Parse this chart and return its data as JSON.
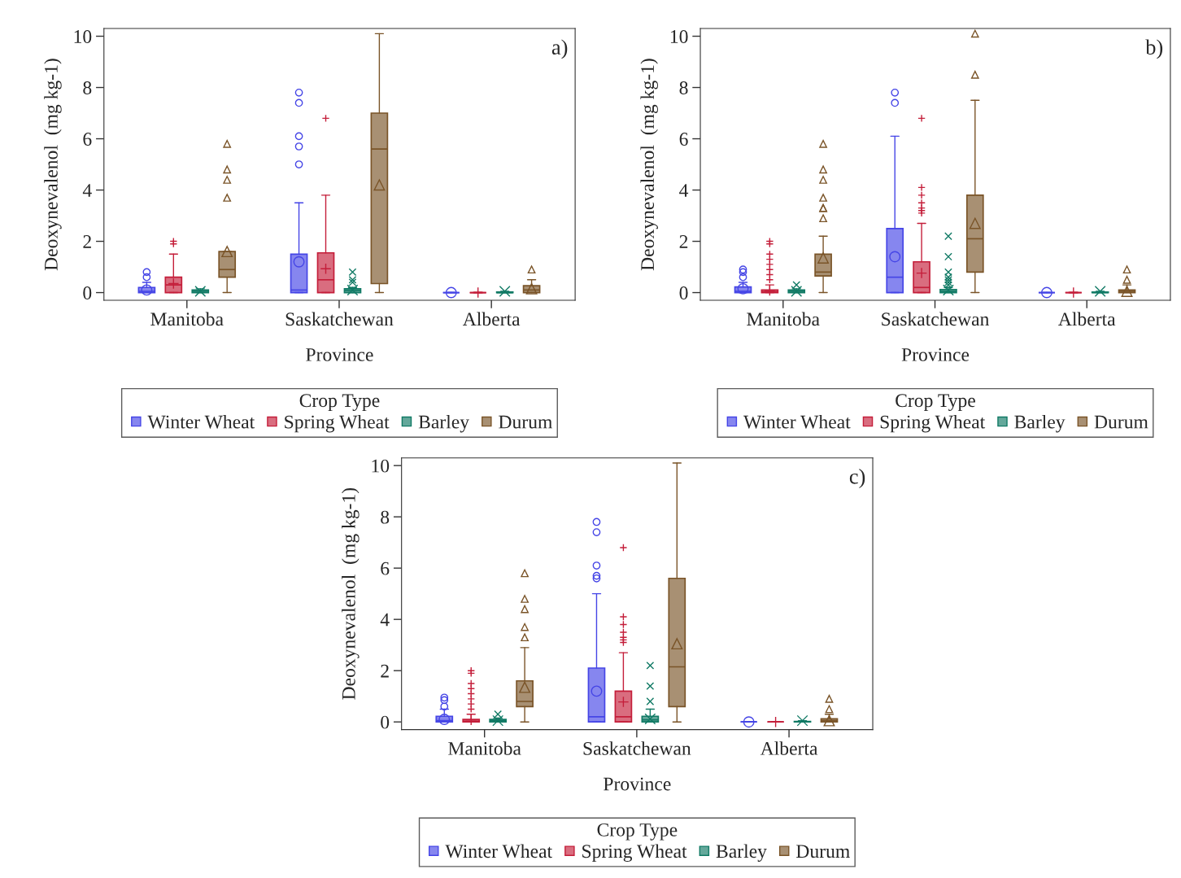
{
  "chart_data": [
    {
      "type": "box",
      "annotations": [
        "a)"
      ],
      "xlabel": "Province",
      "ylabel": "Deoxynevalenol  (mg kg-1)",
      "legend_title": "Crop Type",
      "legend": "bottom",
      "ylim": [
        -0.3,
        10.3
      ],
      "yticks": [
        0,
        2,
        4,
        6,
        8,
        10
      ],
      "categories": [
        "Manitoba",
        "Saskatchewan",
        "Alberta"
      ],
      "series": [
        {
          "name": "Winter Wheat",
          "color": "#4545e6",
          "marker": "circle",
          "boxes": [
            {
              "low": 0,
              "q1": 0,
              "median": 0.05,
              "q3": 0.2,
              "high": 0.4,
              "mean": 0.1,
              "outliers": [
                0.6,
                0.8
              ]
            },
            {
              "low": 0,
              "q1": 0,
              "median": 0.1,
              "q3": 1.5,
              "high": 3.5,
              "mean": 1.2,
              "outliers": [
                5.0,
                5.7,
                6.1,
                7.4,
                7.8
              ]
            },
            {
              "low": 0,
              "q1": 0,
              "median": 0,
              "q3": 0,
              "high": 0,
              "mean": 0
            }
          ]
        },
        {
          "name": "Spring Wheat",
          "color": "#c41e3a",
          "marker": "plus",
          "boxes": [
            {
              "low": 0,
              "q1": 0,
              "median": 0.3,
              "q3": 0.6,
              "high": 1.5,
              "mean": 0.35,
              "outliers": [
                1.9,
                2.0
              ]
            },
            {
              "low": 0,
              "q1": 0,
              "median": 0.5,
              "q3": 1.55,
              "high": 3.8,
              "mean": 0.93,
              "outliers": [
                6.8
              ]
            },
            {
              "low": 0,
              "q1": 0,
              "median": 0,
              "q3": 0,
              "high": 0,
              "mean": 0
            }
          ]
        },
        {
          "name": "Barley",
          "color": "#117a65",
          "marker": "x",
          "boxes": [
            {
              "low": 0,
              "q1": 0,
              "median": 0.05,
              "q3": 0.1,
              "high": 0.15,
              "mean": 0.05
            },
            {
              "low": 0,
              "q1": 0,
              "median": 0.08,
              "q3": 0.15,
              "high": 0.2,
              "mean": 0.1,
              "outliers": [
                0.4,
                0.5,
                0.8
              ]
            },
            {
              "low": 0,
              "q1": 0,
              "median": 0,
              "q3": 0.02,
              "high": 0.05,
              "mean": 0.05
            }
          ]
        },
        {
          "name": "Durum",
          "color": "#7a5428",
          "marker": "triangle",
          "boxes": [
            {
              "low": 0,
              "q1": 0.6,
              "median": 0.9,
              "q3": 1.6,
              "high": 1.6,
              "mean": 1.6,
              "outliers": [
                3.7,
                4.4,
                4.8,
                5.8
              ]
            },
            {
              "low": 0,
              "q1": 0.35,
              "median": 5.6,
              "q3": 7.0,
              "high": 10.1,
              "mean": 4.2
            },
            {
              "low": 0,
              "q1": 0,
              "median": 0.1,
              "q3": 0.27,
              "high": 0.5,
              "mean": 0.15,
              "outliers": [
                0.9
              ]
            }
          ]
        }
      ]
    },
    {
      "type": "box",
      "annotations": [
        "b)"
      ],
      "xlabel": "Province",
      "ylabel": "Deoxynevalenol  (mg kg-1)",
      "legend_title": "Crop Type",
      "legend": "bottom",
      "ylim": [
        -0.3,
        10.3
      ],
      "yticks": [
        0,
        2,
        4,
        6,
        8,
        10
      ],
      "categories": [
        "Manitoba",
        "Saskatchewan",
        "Alberta"
      ],
      "series": [
        {
          "name": "Winter Wheat",
          "color": "#4545e6",
          "marker": "circle",
          "boxes": [
            {
              "low": 0,
              "q1": 0,
              "median": 0.05,
              "q3": 0.22,
              "high": 0.4,
              "mean": 0.15,
              "outliers": [
                0.6,
                0.8,
                0.9
              ]
            },
            {
              "low": 0,
              "q1": 0,
              "median": 0.6,
              "q3": 2.5,
              "high": 6.1,
              "mean": 1.4,
              "outliers": [
                7.4,
                7.8
              ]
            },
            {
              "low": 0,
              "q1": 0,
              "median": 0,
              "q3": 0,
              "high": 0,
              "mean": 0
            }
          ]
        },
        {
          "name": "Spring Wheat",
          "color": "#c41e3a",
          "marker": "plus",
          "boxes": [
            {
              "low": 0,
              "q1": 0,
              "median": 0.03,
              "q3": 0.1,
              "high": 0.3,
              "mean": 0.08,
              "outliers": [
                0.5,
                0.7,
                0.9,
                1.1,
                1.3,
                1.5,
                1.9,
                2.0
              ]
            },
            {
              "low": 0,
              "q1": 0,
              "median": 0.2,
              "q3": 1.2,
              "high": 2.7,
              "mean": 0.76,
              "outliers": [
                3.1,
                3.2,
                3.3,
                3.5,
                3.8,
                4.1,
                6.8
              ]
            },
            {
              "low": 0,
              "q1": 0,
              "median": 0,
              "q3": 0,
              "high": 0,
              "mean": 0
            }
          ]
        },
        {
          "name": "Barley",
          "color": "#117a65",
          "marker": "x",
          "boxes": [
            {
              "low": 0,
              "q1": 0,
              "median": 0.05,
              "q3": 0.1,
              "high": 0.15,
              "mean": 0.05,
              "outliers": [
                0.3
              ]
            },
            {
              "low": 0,
              "q1": 0,
              "median": 0.05,
              "q3": 0.12,
              "high": 0.2,
              "mean": 0.1,
              "outliers": [
                0.3,
                0.4,
                0.5,
                0.6,
                0.8,
                1.4,
                2.2
              ]
            },
            {
              "low": 0,
              "q1": 0,
              "median": 0,
              "q3": 0.02,
              "high": 0.05,
              "mean": 0.05
            }
          ]
        },
        {
          "name": "Durum",
          "color": "#7a5428",
          "marker": "triangle",
          "boxes": [
            {
              "low": 0,
              "q1": 0.65,
              "median": 0.8,
              "q3": 1.5,
              "high": 2.2,
              "mean": 1.35,
              "outliers": [
                2.9,
                3.3,
                3.3,
                3.7,
                4.4,
                4.8,
                5.8
              ]
            },
            {
              "low": 0,
              "q1": 0.8,
              "median": 2.1,
              "q3": 3.8,
              "high": 7.5,
              "mean": 2.7,
              "outliers": [
                8.5,
                10.1
              ]
            },
            {
              "low": 0,
              "q1": 0,
              "median": 0.05,
              "q3": 0.1,
              "high": 0.3,
              "mean": 0.05,
              "outliers": [
                0.5,
                0.9
              ]
            }
          ]
        }
      ]
    },
    {
      "type": "box",
      "annotations": [
        "c)"
      ],
      "xlabel": "Province",
      "ylabel": "Deoxynevalenol  (mg kg-1)",
      "legend_title": "Crop Type",
      "legend": "bottom",
      "ylim": [
        -0.3,
        10.3
      ],
      "yticks": [
        0,
        2,
        4,
        6,
        8,
        10
      ],
      "categories": [
        "Manitoba",
        "Saskatchewan",
        "Alberta"
      ],
      "series": [
        {
          "name": "Winter Wheat",
          "color": "#4545e6",
          "marker": "circle",
          "boxes": [
            {
              "low": 0,
              "q1": 0,
              "median": 0.05,
              "q3": 0.22,
              "high": 0.5,
              "mean": 0.1,
              "outliers": [
                0.6,
                0.85,
                0.95
              ]
            },
            {
              "low": 0,
              "q1": 0,
              "median": 0.2,
              "q3": 2.1,
              "high": 5.0,
              "mean": 1.2,
              "outliers": [
                5.6,
                5.7,
                6.1,
                7.4,
                7.8
              ]
            },
            {
              "low": 0,
              "q1": 0,
              "median": 0,
              "q3": 0,
              "high": 0,
              "mean": 0
            }
          ]
        },
        {
          "name": "Spring Wheat",
          "color": "#c41e3a",
          "marker": "plus",
          "boxes": [
            {
              "low": 0,
              "q1": 0,
              "median": 0.03,
              "q3": 0.1,
              "high": 0.3,
              "mean": 0.08,
              "outliers": [
                0.5,
                0.7,
                0.9,
                1.1,
                1.3,
                1.5,
                1.9,
                2.0
              ]
            },
            {
              "low": 0,
              "q1": 0,
              "median": 0.2,
              "q3": 1.2,
              "high": 2.7,
              "mean": 0.78,
              "outliers": [
                3.1,
                3.2,
                3.3,
                3.5,
                3.8,
                4.1,
                6.8
              ]
            },
            {
              "low": 0,
              "q1": 0,
              "median": 0,
              "q3": 0,
              "high": 0,
              "mean": 0
            }
          ]
        },
        {
          "name": "Barley",
          "color": "#117a65",
          "marker": "x",
          "boxes": [
            {
              "low": 0,
              "q1": 0,
              "median": 0.05,
              "q3": 0.1,
              "high": 0.15,
              "mean": 0.05,
              "outliers": [
                0.3
              ]
            },
            {
              "low": 0,
              "q1": 0,
              "median": 0.08,
              "q3": 0.22,
              "high": 0.5,
              "mean": 0.12,
              "outliers": [
                0.8,
                1.4,
                2.2
              ]
            },
            {
              "low": 0,
              "q1": 0,
              "median": 0,
              "q3": 0.02,
              "high": 0.05,
              "mean": 0.05
            }
          ]
        },
        {
          "name": "Durum",
          "color": "#7a5428",
          "marker": "triangle",
          "boxes": [
            {
              "low": 0,
              "q1": 0.6,
              "median": 0.8,
              "q3": 1.6,
              "high": 2.9,
              "mean": 1.35,
              "outliers": [
                3.3,
                3.7,
                4.4,
                4.8,
                5.8
              ]
            },
            {
              "low": 0,
              "q1": 0.6,
              "median": 2.15,
              "q3": 5.6,
              "high": 10.1,
              "mean": 3.05
            },
            {
              "low": 0,
              "q1": 0,
              "median": 0.05,
              "q3": 0.12,
              "high": 0.3,
              "mean": 0.05,
              "outliers": [
                0.5,
                0.9
              ]
            }
          ]
        }
      ]
    }
  ]
}
